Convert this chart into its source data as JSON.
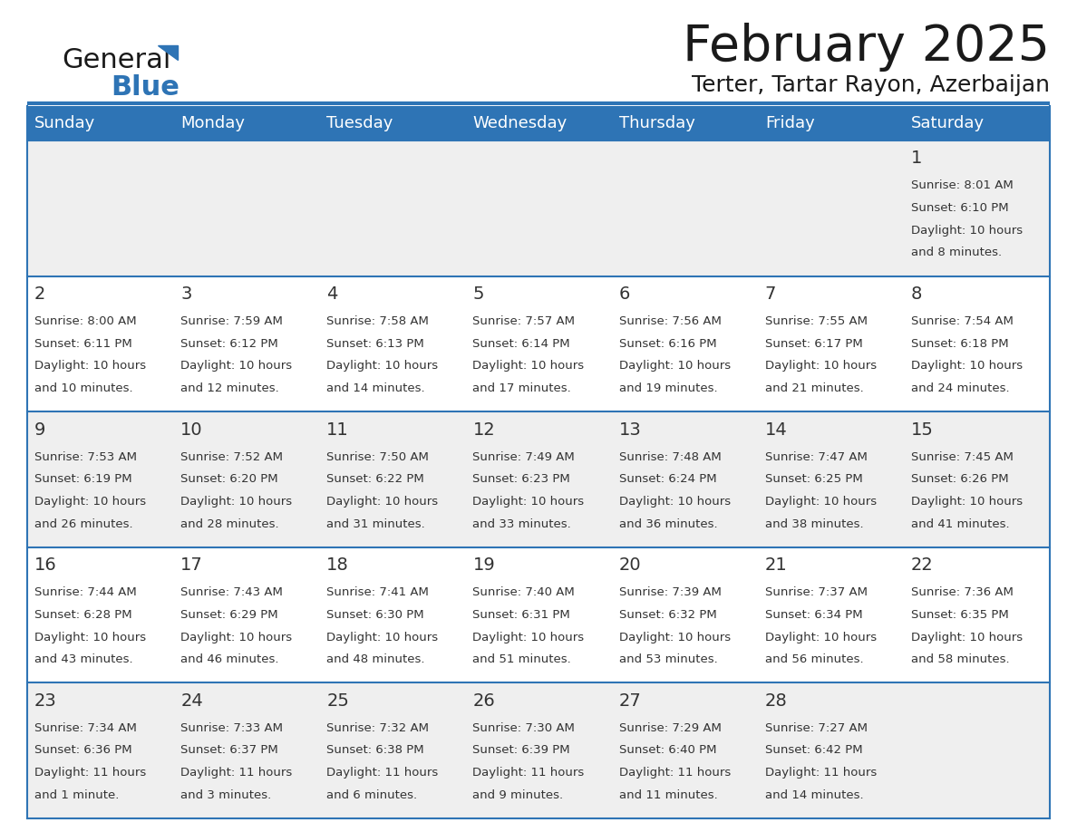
{
  "title": "February 2025",
  "subtitle": "Terter, Tartar Rayon, Azerbaijan",
  "header_bg": "#2E74B5",
  "header_text": "#FFFFFF",
  "day_names": [
    "Sunday",
    "Monday",
    "Tuesday",
    "Wednesday",
    "Thursday",
    "Friday",
    "Saturday"
  ],
  "row_bg_even": "#EFEFEF",
  "row_bg_odd": "#FFFFFF",
  "cell_border": "#2E74B5",
  "date_color": "#333333",
  "info_color": "#333333",
  "days": [
    {
      "day": 1,
      "col": 6,
      "row": 0,
      "sunrise": "8:01 AM",
      "sunset": "6:10 PM",
      "daylight": "10 hours",
      "daylight2": "and 8 minutes."
    },
    {
      "day": 2,
      "col": 0,
      "row": 1,
      "sunrise": "8:00 AM",
      "sunset": "6:11 PM",
      "daylight": "10 hours",
      "daylight2": "and 10 minutes."
    },
    {
      "day": 3,
      "col": 1,
      "row": 1,
      "sunrise": "7:59 AM",
      "sunset": "6:12 PM",
      "daylight": "10 hours",
      "daylight2": "and 12 minutes."
    },
    {
      "day": 4,
      "col": 2,
      "row": 1,
      "sunrise": "7:58 AM",
      "sunset": "6:13 PM",
      "daylight": "10 hours",
      "daylight2": "and 14 minutes."
    },
    {
      "day": 5,
      "col": 3,
      "row": 1,
      "sunrise": "7:57 AM",
      "sunset": "6:14 PM",
      "daylight": "10 hours",
      "daylight2": "and 17 minutes."
    },
    {
      "day": 6,
      "col": 4,
      "row": 1,
      "sunrise": "7:56 AM",
      "sunset": "6:16 PM",
      "daylight": "10 hours",
      "daylight2": "and 19 minutes."
    },
    {
      "day": 7,
      "col": 5,
      "row": 1,
      "sunrise": "7:55 AM",
      "sunset": "6:17 PM",
      "daylight": "10 hours",
      "daylight2": "and 21 minutes."
    },
    {
      "day": 8,
      "col": 6,
      "row": 1,
      "sunrise": "7:54 AM",
      "sunset": "6:18 PM",
      "daylight": "10 hours",
      "daylight2": "and 24 minutes."
    },
    {
      "day": 9,
      "col": 0,
      "row": 2,
      "sunrise": "7:53 AM",
      "sunset": "6:19 PM",
      "daylight": "10 hours",
      "daylight2": "and 26 minutes."
    },
    {
      "day": 10,
      "col": 1,
      "row": 2,
      "sunrise": "7:52 AM",
      "sunset": "6:20 PM",
      "daylight": "10 hours",
      "daylight2": "and 28 minutes."
    },
    {
      "day": 11,
      "col": 2,
      "row": 2,
      "sunrise": "7:50 AM",
      "sunset": "6:22 PM",
      "daylight": "10 hours",
      "daylight2": "and 31 minutes."
    },
    {
      "day": 12,
      "col": 3,
      "row": 2,
      "sunrise": "7:49 AM",
      "sunset": "6:23 PM",
      "daylight": "10 hours",
      "daylight2": "and 33 minutes."
    },
    {
      "day": 13,
      "col": 4,
      "row": 2,
      "sunrise": "7:48 AM",
      "sunset": "6:24 PM",
      "daylight": "10 hours",
      "daylight2": "and 36 minutes."
    },
    {
      "day": 14,
      "col": 5,
      "row": 2,
      "sunrise": "7:47 AM",
      "sunset": "6:25 PM",
      "daylight": "10 hours",
      "daylight2": "and 38 minutes."
    },
    {
      "day": 15,
      "col": 6,
      "row": 2,
      "sunrise": "7:45 AM",
      "sunset": "6:26 PM",
      "daylight": "10 hours",
      "daylight2": "and 41 minutes."
    },
    {
      "day": 16,
      "col": 0,
      "row": 3,
      "sunrise": "7:44 AM",
      "sunset": "6:28 PM",
      "daylight": "10 hours",
      "daylight2": "and 43 minutes."
    },
    {
      "day": 17,
      "col": 1,
      "row": 3,
      "sunrise": "7:43 AM",
      "sunset": "6:29 PM",
      "daylight": "10 hours",
      "daylight2": "and 46 minutes."
    },
    {
      "day": 18,
      "col": 2,
      "row": 3,
      "sunrise": "7:41 AM",
      "sunset": "6:30 PM",
      "daylight": "10 hours",
      "daylight2": "and 48 minutes."
    },
    {
      "day": 19,
      "col": 3,
      "row": 3,
      "sunrise": "7:40 AM",
      "sunset": "6:31 PM",
      "daylight": "10 hours",
      "daylight2": "and 51 minutes."
    },
    {
      "day": 20,
      "col": 4,
      "row": 3,
      "sunrise": "7:39 AM",
      "sunset": "6:32 PM",
      "daylight": "10 hours",
      "daylight2": "and 53 minutes."
    },
    {
      "day": 21,
      "col": 5,
      "row": 3,
      "sunrise": "7:37 AM",
      "sunset": "6:34 PM",
      "daylight": "10 hours",
      "daylight2": "and 56 minutes."
    },
    {
      "day": 22,
      "col": 6,
      "row": 3,
      "sunrise": "7:36 AM",
      "sunset": "6:35 PM",
      "daylight": "10 hours",
      "daylight2": "and 58 minutes."
    },
    {
      "day": 23,
      "col": 0,
      "row": 4,
      "sunrise": "7:34 AM",
      "sunset": "6:36 PM",
      "daylight": "11 hours",
      "daylight2": "and 1 minute."
    },
    {
      "day": 24,
      "col": 1,
      "row": 4,
      "sunrise": "7:33 AM",
      "sunset": "6:37 PM",
      "daylight": "11 hours",
      "daylight2": "and 3 minutes."
    },
    {
      "day": 25,
      "col": 2,
      "row": 4,
      "sunrise": "7:32 AM",
      "sunset": "6:38 PM",
      "daylight": "11 hours",
      "daylight2": "and 6 minutes."
    },
    {
      "day": 26,
      "col": 3,
      "row": 4,
      "sunrise": "7:30 AM",
      "sunset": "6:39 PM",
      "daylight": "11 hours",
      "daylight2": "and 9 minutes."
    },
    {
      "day": 27,
      "col": 4,
      "row": 4,
      "sunrise": "7:29 AM",
      "sunset": "6:40 PM",
      "daylight": "11 hours",
      "daylight2": "and 11 minutes."
    },
    {
      "day": 28,
      "col": 5,
      "row": 4,
      "sunrise": "7:27 AM",
      "sunset": "6:42 PM",
      "daylight": "11 hours",
      "daylight2": "and 14 minutes."
    }
  ],
  "logo_general_color": "#1A1A1A",
  "logo_blue_color": "#2E74B5",
  "title_fontsize": 40,
  "subtitle_fontsize": 18,
  "header_fontsize": 13,
  "day_num_fontsize": 14,
  "info_fontsize": 9.5
}
